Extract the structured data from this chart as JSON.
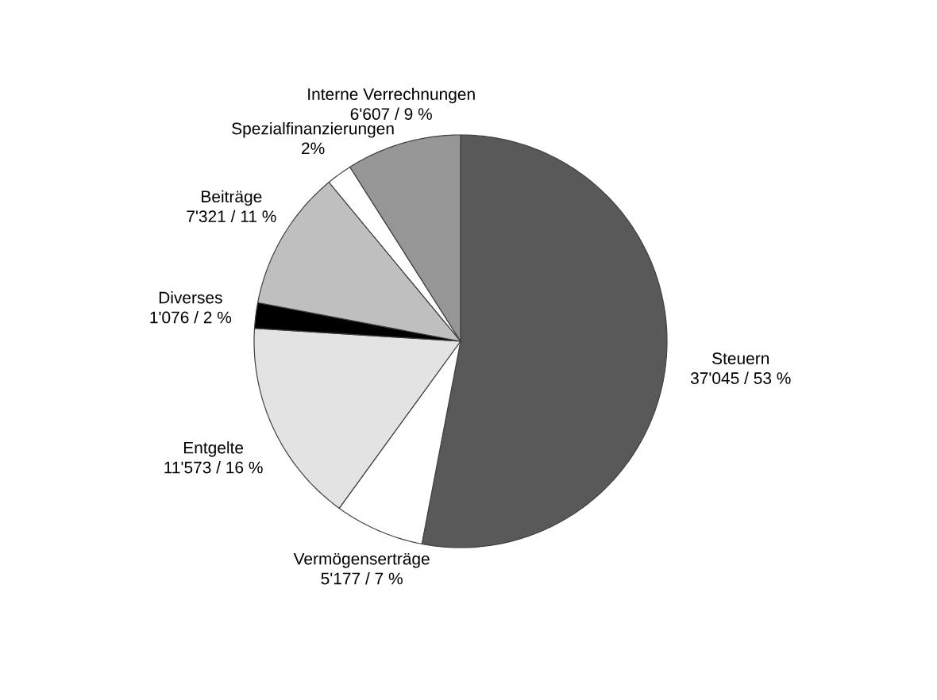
{
  "chart_data": {
    "type": "pie",
    "categories": [
      "Steuern",
      "Vermögenserträge",
      "Entgelte",
      "Diverses",
      "Beiträge",
      "Spezialfinanzierungen",
      "Interne Verrechnungen"
    ],
    "values": [
      53,
      7,
      16,
      2,
      11,
      2,
      9
    ],
    "value_labels": [
      "37'045 / 53 %",
      "5'177 / 7 %",
      "11'573 / 16 %",
      "1'076 / 2 %",
      "7'321 / 11 %",
      "2%",
      "6'607 / 9 %"
    ],
    "colors": [
      "#595959",
      "#ffffff",
      "#e3e3e3",
      "#000000",
      "#bfbfbf",
      "#ffffff",
      "#969696"
    ]
  }
}
